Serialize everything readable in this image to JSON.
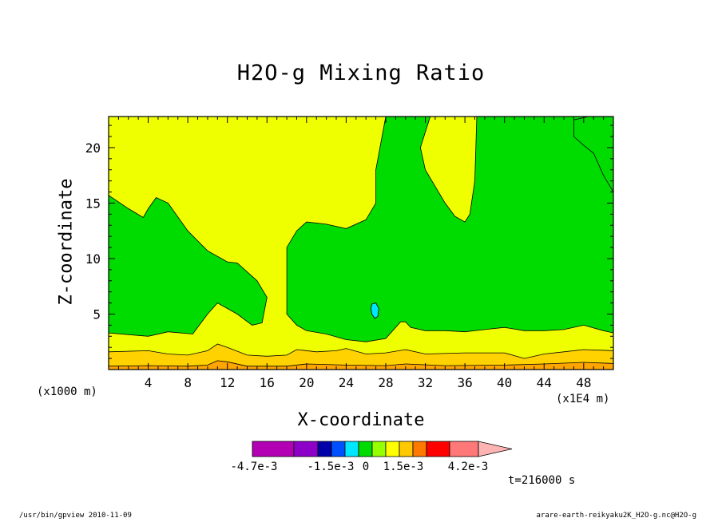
{
  "chart_data": {
    "type": "heatmap",
    "title": "H2O-g Mixing Ratio",
    "xlabel": "X-coordinate",
    "ylabel": "Z-coordinate",
    "x_unit": "(x1000 m)",
    "x_multiplier": "(x1E4 m)",
    "x_ticks": [
      "4",
      "8",
      "12",
      "16",
      "20",
      "24",
      "28",
      "32",
      "36",
      "40",
      "44",
      "48"
    ],
    "y_ticks": [
      "5",
      "10",
      "15",
      "20"
    ],
    "xlim": [
      0,
      51
    ],
    "ylim": [
      0,
      22.8
    ],
    "colorbar": {
      "labels": [
        "-4.7e-3",
        "-1.5e-3",
        "0",
        "1.5e-3",
        "4.2e-3"
      ],
      "colors": [
        "#b400b4",
        "#8c00c8",
        "#0000aa",
        "#0050ff",
        "#00e6ff",
        "#00dc00",
        "#96ff00",
        "#ffff00",
        "#ffc800",
        "#ff7800",
        "#ff0000",
        "#ff7878",
        "#ffb4b4"
      ]
    },
    "colors": {
      "yellow_field": "#f0ff00",
      "green_region": "#00dc00",
      "cyan_cell": "#00e6ff",
      "low_band_light": "#ffd200",
      "low_band_orange": "#ffa500"
    },
    "regions": [
      {
        "color": "green",
        "points": [
          [
            0,
            15.7
          ],
          [
            2,
            14.5
          ],
          [
            3.5,
            13.7
          ],
          [
            4,
            14.5
          ],
          [
            4.8,
            15.5
          ],
          [
            6,
            15
          ],
          [
            8,
            12.5
          ],
          [
            10,
            10.7
          ],
          [
            12,
            9.7
          ],
          [
            13,
            9.6
          ],
          [
            15,
            8
          ],
          [
            16,
            6.5
          ],
          [
            15.5,
            4.2
          ],
          [
            14.5,
            4
          ],
          [
            13,
            5
          ],
          [
            12,
            5.5
          ],
          [
            11,
            6
          ],
          [
            10,
            5
          ],
          [
            8.5,
            3.2
          ],
          [
            6,
            3.4
          ],
          [
            4,
            3
          ],
          [
            0,
            3.3
          ]
        ]
      },
      {
        "color": "green",
        "points": [
          [
            18,
            11
          ],
          [
            19,
            12.5
          ],
          [
            20,
            13.3
          ],
          [
            22,
            13.1
          ],
          [
            24,
            12.7
          ],
          [
            26,
            13.5
          ],
          [
            27,
            15
          ],
          [
            27,
            18
          ],
          [
            28,
            22.8
          ],
          [
            32.5,
            22.8
          ],
          [
            31.5,
            20
          ],
          [
            32,
            18
          ],
          [
            33,
            16.5
          ],
          [
            34,
            15
          ],
          [
            35,
            13.8
          ],
          [
            36,
            13.3
          ],
          [
            36.5,
            14
          ],
          [
            37,
            17
          ],
          [
            37.2,
            22.8
          ],
          [
            51,
            22.8
          ],
          [
            51,
            16
          ],
          [
            50,
            17.5
          ],
          [
            49,
            19.5
          ],
          [
            48,
            20.2
          ],
          [
            47,
            21
          ],
          [
            47,
            22.5
          ],
          [
            48.5,
            22.8
          ],
          [
            51,
            22.8
          ],
          [
            51,
            3.3
          ],
          [
            50,
            3.5
          ],
          [
            48,
            4
          ],
          [
            46,
            3.6
          ],
          [
            44,
            3.5
          ],
          [
            42,
            3.5
          ],
          [
            40,
            3.8
          ],
          [
            38,
            3.6
          ],
          [
            36,
            3.4
          ],
          [
            34,
            3.5
          ],
          [
            32,
            3.5
          ],
          [
            30.5,
            3.8
          ],
          [
            30,
            4.3
          ],
          [
            29.5,
            4.3
          ],
          [
            28,
            2.8
          ],
          [
            26,
            2.5
          ],
          [
            24,
            2.7
          ],
          [
            22,
            3.2
          ],
          [
            20,
            3.5
          ],
          [
            19,
            4
          ],
          [
            18,
            5
          ]
        ]
      },
      {
        "color": "cyan",
        "points": [
          [
            26.6,
            5.9
          ],
          [
            27,
            6
          ],
          [
            27.3,
            5.5
          ],
          [
            27.2,
            4.8
          ],
          [
            26.9,
            4.6
          ],
          [
            26.6,
            5
          ],
          [
            26.5,
            5.5
          ]
        ]
      }
    ],
    "bands": [
      {
        "color": "light-orange",
        "top": [
          [
            0,
            1.6
          ],
          [
            4,
            1.7
          ],
          [
            6,
            1.4
          ],
          [
            8,
            1.3
          ],
          [
            10,
            1.7
          ],
          [
            11,
            2.3
          ],
          [
            12,
            2
          ],
          [
            14,
            1.3
          ],
          [
            16,
            1.2
          ],
          [
            18,
            1.3
          ],
          [
            19,
            1.8
          ],
          [
            21,
            1.6
          ],
          [
            23,
            1.7
          ],
          [
            24,
            1.9
          ],
          [
            26,
            1.4
          ],
          [
            28,
            1.5
          ],
          [
            30,
            1.8
          ],
          [
            32,
            1.4
          ],
          [
            36,
            1.5
          ],
          [
            40,
            1.5
          ],
          [
            42,
            1
          ],
          [
            44,
            1.4
          ],
          [
            46,
            1.6
          ],
          [
            48,
            1.8
          ],
          [
            51,
            1.7
          ]
        ]
      },
      {
        "color": "orange",
        "top": [
          [
            0,
            0.3
          ],
          [
            4,
            0.35
          ],
          [
            8,
            0.3
          ],
          [
            10,
            0.4
          ],
          [
            11,
            0.8
          ],
          [
            12,
            0.7
          ],
          [
            14,
            0.3
          ],
          [
            18,
            0.3
          ],
          [
            20,
            0.5
          ],
          [
            24,
            0.4
          ],
          [
            28,
            0.35
          ],
          [
            30,
            0.5
          ],
          [
            34,
            0.35
          ],
          [
            40,
            0.4
          ],
          [
            44,
            0.5
          ],
          [
            48,
            0.65
          ],
          [
            51,
            0.55
          ]
        ]
      }
    ]
  },
  "time_label": "t=216000 s",
  "footer": {
    "left": "/usr/bin/gpview   2010-11-09",
    "right": "arare-earth-reikyaku2K_H2O-g.nc@H2O-g"
  }
}
